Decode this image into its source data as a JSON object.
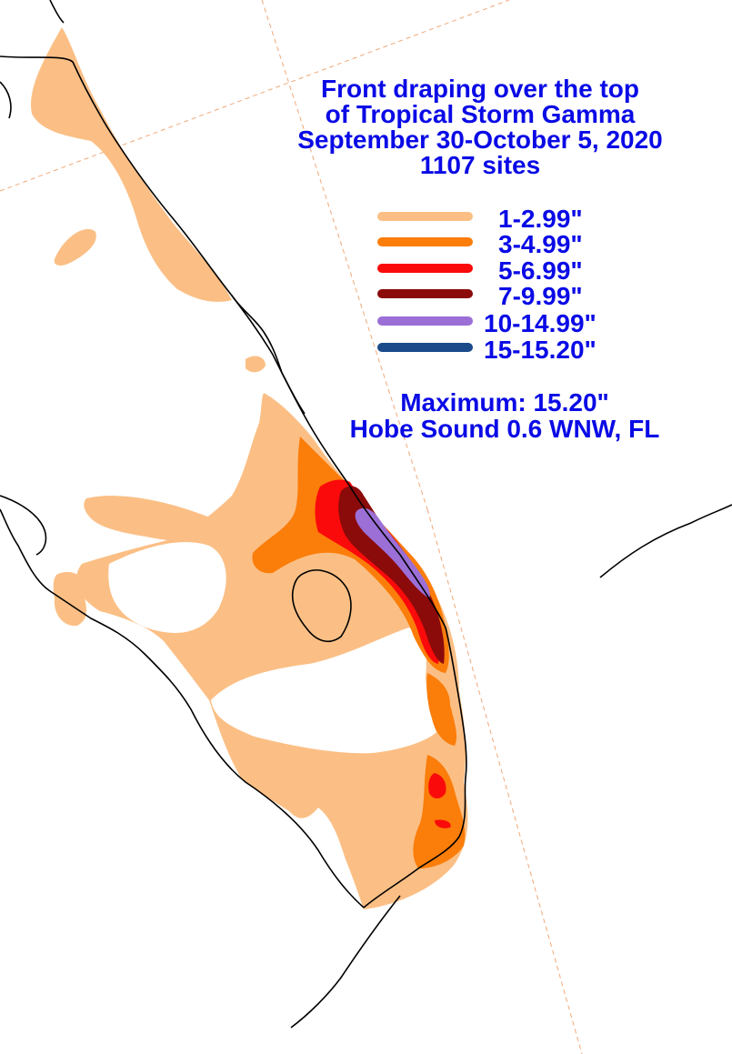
{
  "title": {
    "line1": "Front draping over the top",
    "line2": "of Tropical Storm Gamma",
    "line3": "September 30-October 5, 2020",
    "line4": "1107 sites"
  },
  "legend": [
    {
      "label": "1-2.99\"",
      "color": "#fbbf85"
    },
    {
      "label": "3-4.99\"",
      "color": "#fb7d0a"
    },
    {
      "label": "5-6.99\"",
      "color": "#fa0a0a"
    },
    {
      "label": "7-9.99\"",
      "color": "#8b0a0a"
    },
    {
      "label": "10-14.99\"",
      "color": "#9b6fd6"
    },
    {
      "label": "15-15.20\"",
      "color": "#1a4a8a"
    }
  ],
  "maximum": {
    "line1": "Maximum:  15.20\"",
    "line2": "Hobe Sound 0.6 WNW, FL"
  },
  "colors": {
    "text": "#0a0ae6",
    "coastline": "#000000",
    "gridline": "#f0a878",
    "background": "#ffffff"
  }
}
